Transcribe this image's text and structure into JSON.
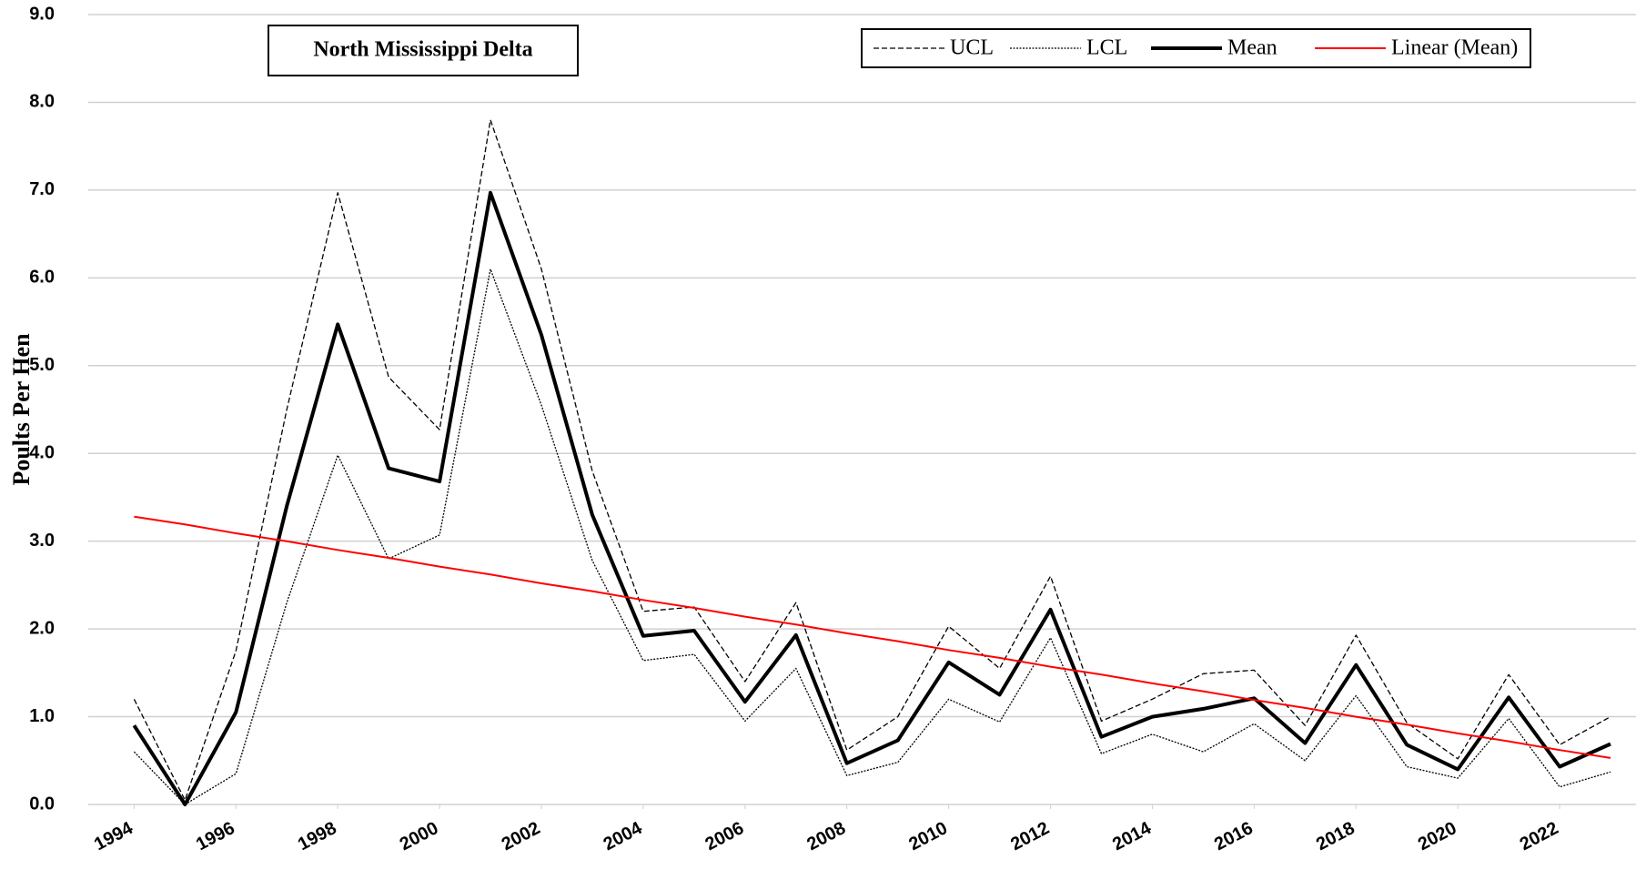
{
  "chart_data": {
    "type": "line",
    "title": "North Mississippi Delta",
    "y_label": "Poults Per Hen",
    "x": [
      1994,
      1995,
      1996,
      1997,
      1998,
      1999,
      2000,
      2001,
      2002,
      2003,
      2004,
      2005,
      2006,
      2007,
      2008,
      2009,
      2010,
      2011,
      2012,
      2013,
      2014,
      2015,
      2016,
      2017,
      2018,
      2019,
      2020,
      2021,
      2022,
      2023
    ],
    "series": [
      {
        "name": "UCL",
        "color": "#000000",
        "style": "dashed",
        "values": [
          1.2,
          0.05,
          1.75,
          4.5,
          6.97,
          4.87,
          4.27,
          7.8,
          6.1,
          3.8,
          2.2,
          2.25,
          1.4,
          2.3,
          0.62,
          1.0,
          2.03,
          1.55,
          2.6,
          0.95,
          1.2,
          1.49,
          1.53,
          0.9,
          1.93,
          0.93,
          0.52,
          1.48,
          0.68,
          1.0
        ]
      },
      {
        "name": "LCL",
        "color": "#000000",
        "style": "dotted",
        "values": [
          0.6,
          0.0,
          0.35,
          2.3,
          3.98,
          2.8,
          3.07,
          6.1,
          4.55,
          2.78,
          1.64,
          1.71,
          0.95,
          1.55,
          0.33,
          0.48,
          1.2,
          0.94,
          1.9,
          0.58,
          0.8,
          0.6,
          0.92,
          0.5,
          1.24,
          0.43,
          0.3,
          0.98,
          0.2,
          0.37
        ]
      },
      {
        "name": "Mean",
        "color": "#000000",
        "style": "thick",
        "values": [
          0.9,
          0.0,
          1.05,
          3.4,
          5.47,
          3.83,
          3.68,
          6.97,
          5.35,
          3.3,
          1.92,
          1.98,
          1.17,
          1.93,
          0.47,
          0.73,
          1.62,
          1.25,
          2.22,
          0.77,
          1.0,
          1.09,
          1.21,
          0.7,
          1.59,
          0.68,
          0.4,
          1.22,
          0.43,
          0.69
        ]
      },
      {
        "name": "Linear (Mean)",
        "color": "#ff0000",
        "style": "solid",
        "values": [
          3.28,
          3.19,
          3.09,
          3.0,
          2.9,
          2.81,
          2.71,
          2.62,
          2.52,
          2.43,
          2.33,
          2.24,
          2.14,
          2.05,
          1.95,
          1.86,
          1.76,
          1.67,
          1.57,
          1.48,
          1.38,
          1.29,
          1.19,
          1.1,
          1.0,
          0.91,
          0.81,
          0.72,
          0.62,
          0.53
        ]
      }
    ],
    "xlim": [
      1993.1,
      2023.5
    ],
    "xticks": [
      1994,
      1996,
      1998,
      2000,
      2002,
      2004,
      2006,
      2008,
      2010,
      2012,
      2014,
      2016,
      2018,
      2020,
      2022
    ],
    "ylim": [
      0,
      9
    ],
    "yticks": [
      {
        "value": 0,
        "label": "0.0"
      },
      {
        "value": 1,
        "label": "1.0"
      },
      {
        "value": 2,
        "label": "2.0"
      },
      {
        "value": 3,
        "label": "3.0"
      },
      {
        "value": 4,
        "label": "4.0"
      },
      {
        "value": 5,
        "label": "5.0"
      },
      {
        "value": 6,
        "label": "6.0"
      },
      {
        "value": 7,
        "label": "7.0"
      },
      {
        "value": 8,
        "label": "8.0"
      },
      {
        "value": 9,
        "label": "9.0"
      }
    ],
    "grid": true,
    "legend": "top-right"
  }
}
